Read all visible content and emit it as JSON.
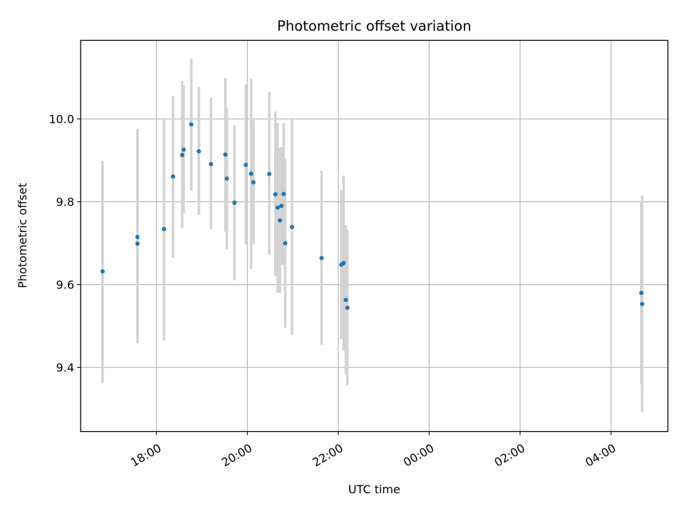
{
  "chart_data": {
    "type": "scatter",
    "title": "Photometric offset variation",
    "xlabel": "UTC time",
    "ylabel": "Photometric offset",
    "x_axis_kind": "time",
    "xlim": [
      "16:20",
      "29:15"
    ],
    "ylim": [
      9.245,
      10.19
    ],
    "grid": true,
    "x_ticks": [
      {
        "label": "18:00",
        "time": "18:00"
      },
      {
        "label": "20:00",
        "time": "20:00"
      },
      {
        "label": "22:00",
        "time": "22:00"
      },
      {
        "label": "00:00",
        "time": "24:00"
      },
      {
        "label": "02:00",
        "time": "26:00"
      },
      {
        "label": "04:00",
        "time": "28:00"
      }
    ],
    "y_ticks": [
      9.4,
      9.6,
      9.8,
      10.0
    ],
    "y_tick_labels": [
      "9.4",
      "9.6",
      "9.8",
      "10.0"
    ],
    "marker_color": "#1f77b4",
    "errorbar_color": "#d3d3d3",
    "points": [
      {
        "time": "16:49",
        "y": 9.632,
        "lo": 9.363,
        "hi": 9.899
      },
      {
        "time": "17:35",
        "y": 9.715,
        "lo": 9.458,
        "hi": 9.975
      },
      {
        "time": "17:35",
        "y": 9.699,
        "lo": 9.458,
        "hi": 9.975
      },
      {
        "time": "18:10",
        "y": 9.734,
        "lo": 9.465,
        "hi": 10.002
      },
      {
        "time": "18:22",
        "y": 9.861,
        "lo": 9.665,
        "hi": 10.055
      },
      {
        "time": "18:34",
        "y": 9.913,
        "lo": 9.736,
        "hi": 10.092
      },
      {
        "time": "18:36",
        "y": 9.926,
        "lo": 9.772,
        "hi": 10.08
      },
      {
        "time": "18:46",
        "y": 9.987,
        "lo": 9.827,
        "hi": 10.146
      },
      {
        "time": "18:56",
        "y": 9.922,
        "lo": 9.768,
        "hi": 10.077
      },
      {
        "time": "19:12",
        "y": 9.891,
        "lo": 9.734,
        "hi": 10.052
      },
      {
        "time": "19:31",
        "y": 9.914,
        "lo": 9.728,
        "hi": 10.099
      },
      {
        "time": "19:33",
        "y": 9.856,
        "lo": 9.686,
        "hi": 10.026
      },
      {
        "time": "19:43",
        "y": 9.798,
        "lo": 9.611,
        "hi": 9.985
      },
      {
        "time": "19:58",
        "y": 9.889,
        "lo": 9.697,
        "hi": 10.083
      },
      {
        "time": "20:05",
        "y": 9.868,
        "lo": 9.638,
        "hi": 10.097
      },
      {
        "time": "20:08",
        "y": 9.847,
        "lo": 9.697,
        "hi": 9.997
      },
      {
        "time": "20:29",
        "y": 9.867,
        "lo": 9.671,
        "hi": 10.065
      },
      {
        "time": "20:37",
        "y": 9.818,
        "lo": 9.62,
        "hi": 10.018
      },
      {
        "time": "20:40",
        "y": 9.786,
        "lo": 9.58,
        "hi": 9.99
      },
      {
        "time": "20:43",
        "y": 9.755,
        "lo": 9.58,
        "hi": 9.93
      },
      {
        "time": "20:45",
        "y": 9.79,
        "lo": 9.648,
        "hi": 9.932
      },
      {
        "time": "20:48",
        "y": 9.819,
        "lo": 9.648,
        "hi": 9.99
      },
      {
        "time": "20:50",
        "y": 9.7,
        "lo": 9.496,
        "hi": 9.904
      },
      {
        "time": "20:59",
        "y": 9.739,
        "lo": 9.478,
        "hi": 9.999
      },
      {
        "time": "21:38",
        "y": 9.664,
        "lo": 9.455,
        "hi": 9.875
      },
      {
        "time": "22:04",
        "y": 9.648,
        "lo": 9.468,
        "hi": 9.828
      },
      {
        "time": "22:07",
        "y": 9.652,
        "lo": 9.44,
        "hi": 9.863
      },
      {
        "time": "22:10",
        "y": 9.563,
        "lo": 9.383,
        "hi": 9.744
      },
      {
        "time": "22:12",
        "y": 9.544,
        "lo": 9.357,
        "hi": 9.732
      },
      {
        "time": "28:40",
        "y": 9.58,
        "lo": 9.359,
        "hi": 9.801
      },
      {
        "time": "28:41",
        "y": 9.553,
        "lo": 9.292,
        "hi": 9.815
      }
    ]
  }
}
